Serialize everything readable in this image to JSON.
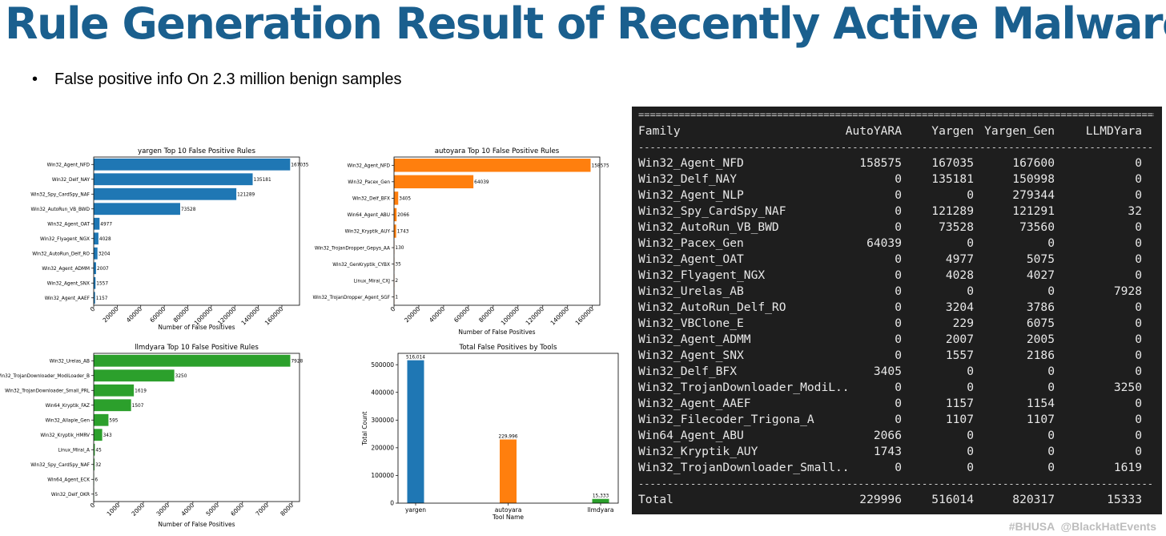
{
  "slide": {
    "title": "Rule Generation Result of Recently Active Malware",
    "bullet_marker": "•",
    "bullet": "False positive info On  2.3 million benign samples",
    "footer_tag": "#BHUSA",
    "footer_handle": "@BlackHatEvents",
    "colors": {
      "title": "#1a5f8e",
      "yargen": "#1f77b4",
      "autoyara": "#ff7f0e",
      "llmdyara": "#2ca02c"
    }
  },
  "chart_data": [
    {
      "type": "bar",
      "orientation": "horizontal",
      "title": "yargen Top 10 False Positive Rules",
      "xlabel": "Number of False Positives",
      "categories": [
        "Win32_Agent_NFD",
        "Win32_Delf_NAY",
        "Win32_Spy_CardSpy_NAF",
        "Win32_AutoRun_VB_BWD",
        "Win32_Agent_OAT",
        "Win32_Flyagent_NGX",
        "Win32_AutoRun_Delf_RO",
        "Win32_Agent_ADMM",
        "Win32_Agent_SNX",
        "Win32_Agent_AAEF"
      ],
      "values": [
        167035,
        135181,
        121289,
        73528,
        4977,
        4028,
        3204,
        2007,
        1557,
        1157
      ],
      "xticks": [
        0,
        20000,
        40000,
        60000,
        80000,
        100000,
        120000,
        140000,
        160000
      ],
      "xlim": [
        0,
        175000
      ],
      "color": "#1f77b4"
    },
    {
      "type": "bar",
      "orientation": "horizontal",
      "title": "autoyara Top 10 False Positive Rules",
      "xlabel": "Number of False Positives",
      "categories": [
        "Win32_Agent_NFD",
        "Win32_Pacex_Gen",
        "Win32_Delf_BFX",
        "Win64_Agent_ABU",
        "Win32_Kryptik_AUY",
        "Win32_TrojanDropper_Gepys_AA",
        "Win32_GenKryptik_CYBX",
        "Linux_Mirai_CXJ",
        "Win32_TrojanDropper_Agent_SGF"
      ],
      "values": [
        158575,
        64039,
        3405,
        2066,
        1743,
        130,
        35,
        2,
        1
      ],
      "xticks": [
        0,
        20000,
        40000,
        60000,
        80000,
        100000,
        120000,
        140000,
        160000
      ],
      "xlim": [
        0,
        166000
      ],
      "color": "#ff7f0e"
    },
    {
      "type": "bar",
      "orientation": "horizontal",
      "title": "llmdyara Top 10 False Positive Rules",
      "xlabel": "Number of False Positives",
      "categories": [
        "Win32_Urelas_AB",
        "Win32_TrojanDownloader_ModiLoader_B",
        "Win32_TrojanDownloader_Small_PRL",
        "Win64_Kryptik_FAZ",
        "Win32_Allaple_Gen",
        "Win32_Kryptik_HMRV",
        "Linux_Mirai_A",
        "Win32_Spy_CardSpy_NAF",
        "Win64_Agent_ECK",
        "Win32_Delf_OKR"
      ],
      "values": [
        7928,
        3250,
        1619,
        1507,
        595,
        343,
        45,
        32,
        6,
        5
      ],
      "xticks": [
        0,
        1000,
        2000,
        3000,
        4000,
        5000,
        6000,
        7000,
        8000
      ],
      "xlim": [
        0,
        8300
      ],
      "color": "#2ca02c"
    },
    {
      "type": "bar",
      "title": "Total False Positives by Tools",
      "xlabel": "Tool Name",
      "ylabel": "Total Count",
      "categories": [
        "yargen",
        "autoyara",
        "llmdyara"
      ],
      "values": [
        516014,
        229996,
        15333
      ],
      "data_labels": [
        "516,014",
        "229,996",
        "15,333"
      ],
      "colors": [
        "#1f77b4",
        "#ff7f0e",
        "#2ca02c"
      ],
      "yticks": [
        0,
        100000,
        200000,
        300000,
        400000,
        500000
      ],
      "ylim": [
        0,
        541000
      ]
    },
    {
      "type": "table",
      "columns": [
        "Family",
        "AutoYARA",
        "Yargen",
        "Yargen_Gen",
        "LLMDYara"
      ],
      "rows": [
        [
          "Win32_Agent_NFD",
          "158575",
          "167035",
          "167600",
          "0"
        ],
        [
          "Win32_Delf_NAY",
          "0",
          "135181",
          "150998",
          "0"
        ],
        [
          "Win32_Agent_NLP",
          "0",
          "0",
          "279344",
          "0"
        ],
        [
          "Win32_Spy_CardSpy_NAF",
          "0",
          "121289",
          "121291",
          "32"
        ],
        [
          "Win32_AutoRun_VB_BWD",
          "0",
          "73528",
          "73560",
          "0"
        ],
        [
          "Win32_Pacex_Gen",
          "64039",
          "0",
          "0",
          "0"
        ],
        [
          "Win32_Agent_OAT",
          "0",
          "4977",
          "5075",
          "0"
        ],
        [
          "Win32_Flyagent_NGX",
          "0",
          "4028",
          "4027",
          "0"
        ],
        [
          "Win32_Urelas_AB",
          "0",
          "0",
          "0",
          "7928"
        ],
        [
          "Win32_AutoRun_Delf_RO",
          "0",
          "3204",
          "3786",
          "0"
        ],
        [
          "Win32_VBClone_E",
          "0",
          "229",
          "6075",
          "0"
        ],
        [
          "Win32_Agent_ADMM",
          "0",
          "2007",
          "2005",
          "0"
        ],
        [
          "Win32_Agent_SNX",
          "0",
          "1557",
          "2186",
          "0"
        ],
        [
          "Win32_Delf_BFX",
          "3405",
          "0",
          "0",
          "0"
        ],
        [
          "Win32_TrojanDownloader_ModiL..",
          "0",
          "0",
          "0",
          "3250"
        ],
        [
          "Win32_Agent_AAEF",
          "0",
          "1157",
          "1154",
          "0"
        ],
        [
          "Win32_Filecoder_Trigona_A",
          "0",
          "1107",
          "1107",
          "0"
        ],
        [
          "Win64_Agent_ABU",
          "2066",
          "0",
          "0",
          "0"
        ],
        [
          "Win32_Kryptik_AUY",
          "1743",
          "0",
          "0",
          "0"
        ],
        [
          "Win32_TrojanDownloader_Small..",
          "0",
          "0",
          "0",
          "1619"
        ]
      ],
      "total": [
        "Total",
        "229996",
        "516014",
        "820317",
        "15333"
      ]
    }
  ]
}
